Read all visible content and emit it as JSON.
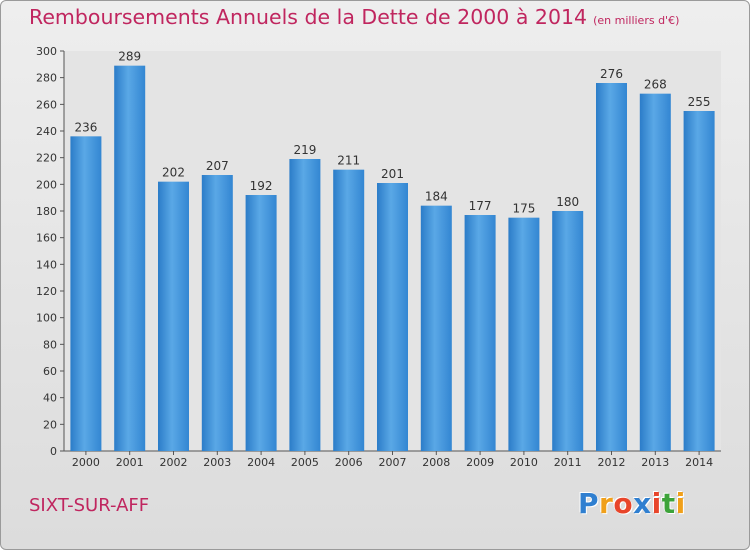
{
  "chart_data": {
    "type": "bar",
    "title": "Remboursements Annuels de la Dette de 2000 à 2014",
    "unit": "(en milliers d'€)",
    "categories": [
      "2000",
      "2001",
      "2002",
      "2003",
      "2004",
      "2005",
      "2006",
      "2007",
      "2008",
      "2009",
      "2010",
      "2011",
      "2012",
      "2013",
      "2014"
    ],
    "values": [
      236,
      289,
      202,
      207,
      192,
      219,
      211,
      201,
      184,
      177,
      175,
      180,
      276,
      268,
      255
    ],
    "ylim": [
      0,
      300
    ],
    "yticks": [
      0,
      20,
      40,
      60,
      80,
      100,
      120,
      140,
      160,
      180,
      200,
      220,
      240,
      260,
      280,
      300
    ],
    "grid": false,
    "bar_color": "#3d8fd6",
    "xlabel": "",
    "ylabel": ""
  },
  "footer": {
    "commune": "SIXT-SUR-AFF",
    "logo_letters": [
      "P",
      "r",
      "o",
      "x",
      "i",
      "t",
      "i"
    ],
    "logo_colors": [
      "#2f7fd0",
      "#f0a01a",
      "#e8452a",
      "#2f7fd0",
      "#e8452a",
      "#3da33a",
      "#f0a01a"
    ]
  }
}
